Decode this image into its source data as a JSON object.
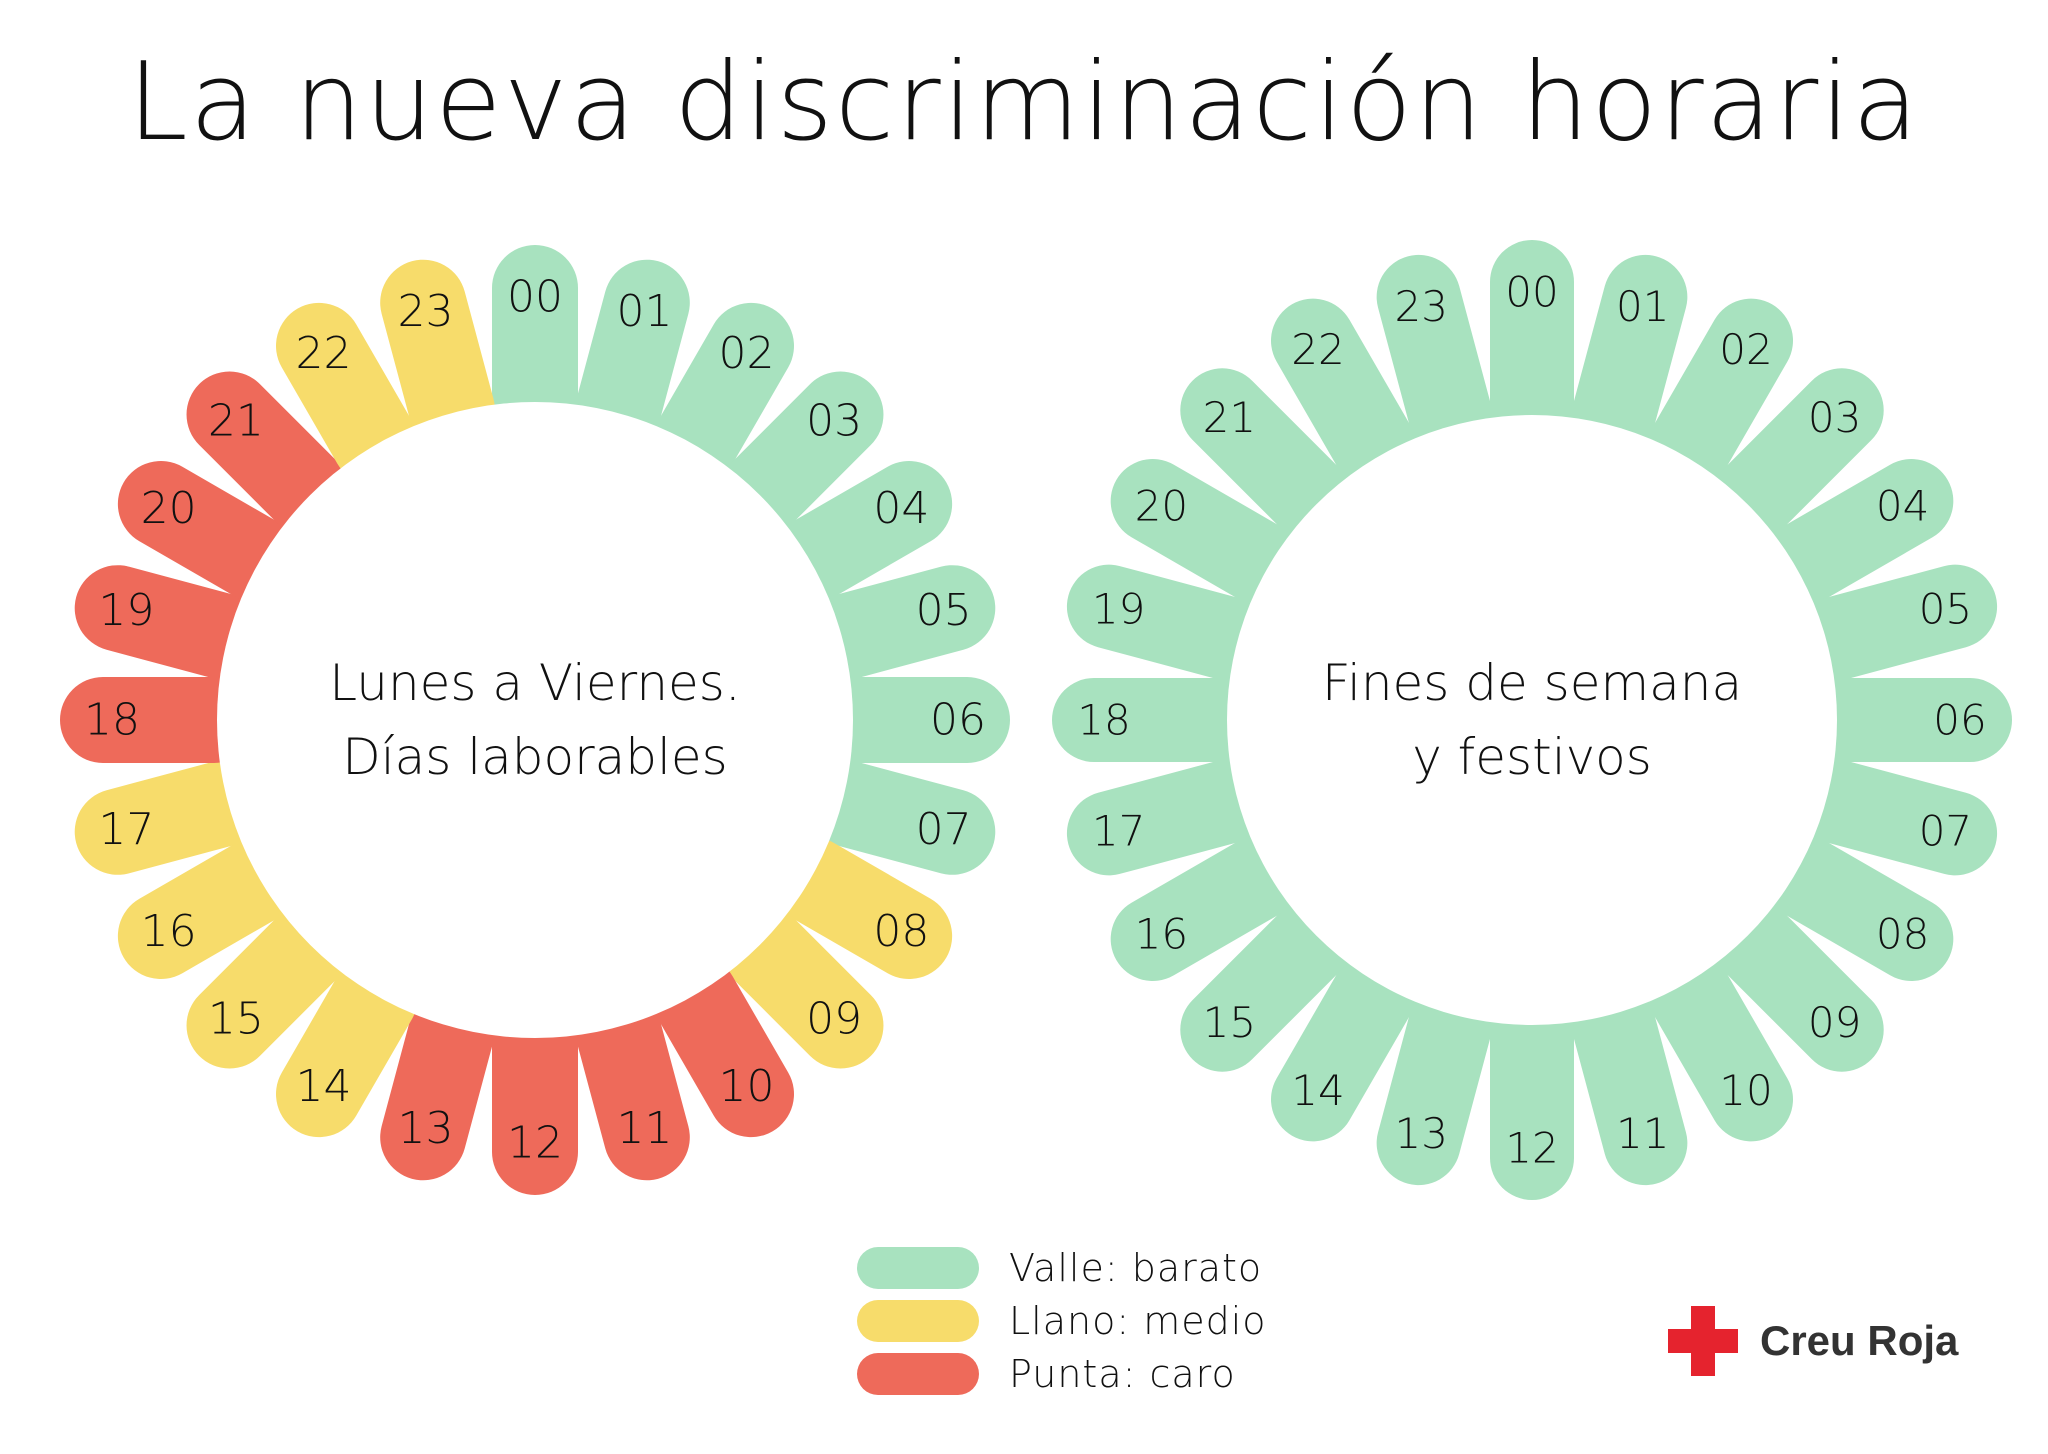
{
  "title": "La nueva discriminación horaria",
  "colors": {
    "valle": "#a8e2bf",
    "llano": "#f7dc6b",
    "punta": "#ee6a5a",
    "brand": "#e5232e"
  },
  "wheels": [
    {
      "center_lines": [
        "Lunes a Viernes.",
        "Días laborables"
      ],
      "hours": [
        {
          "label": "00",
          "tariff": "valle"
        },
        {
          "label": "01",
          "tariff": "valle"
        },
        {
          "label": "02",
          "tariff": "valle"
        },
        {
          "label": "03",
          "tariff": "valle"
        },
        {
          "label": "04",
          "tariff": "valle"
        },
        {
          "label": "05",
          "tariff": "valle"
        },
        {
          "label": "06",
          "tariff": "valle"
        },
        {
          "label": "07",
          "tariff": "valle"
        },
        {
          "label": "08",
          "tariff": "llano"
        },
        {
          "label": "09",
          "tariff": "llano"
        },
        {
          "label": "10",
          "tariff": "punta"
        },
        {
          "label": "11",
          "tariff": "punta"
        },
        {
          "label": "12",
          "tariff": "punta"
        },
        {
          "label": "13",
          "tariff": "punta"
        },
        {
          "label": "14",
          "tariff": "llano"
        },
        {
          "label": "15",
          "tariff": "llano"
        },
        {
          "label": "16",
          "tariff": "llano"
        },
        {
          "label": "17",
          "tariff": "llano"
        },
        {
          "label": "18",
          "tariff": "punta"
        },
        {
          "label": "19",
          "tariff": "punta"
        },
        {
          "label": "20",
          "tariff": "punta"
        },
        {
          "label": "21",
          "tariff": "punta"
        },
        {
          "label": "22",
          "tariff": "llano"
        },
        {
          "label": "23",
          "tariff": "llano"
        }
      ]
    },
    {
      "center_lines": [
        "Fines de semana",
        "y festivos"
      ],
      "hours": [
        {
          "label": "00",
          "tariff": "valle"
        },
        {
          "label": "01",
          "tariff": "valle"
        },
        {
          "label": "02",
          "tariff": "valle"
        },
        {
          "label": "03",
          "tariff": "valle"
        },
        {
          "label": "04",
          "tariff": "valle"
        },
        {
          "label": "05",
          "tariff": "valle"
        },
        {
          "label": "06",
          "tariff": "valle"
        },
        {
          "label": "07",
          "tariff": "valle"
        },
        {
          "label": "08",
          "tariff": "valle"
        },
        {
          "label": "09",
          "tariff": "valle"
        },
        {
          "label": "10",
          "tariff": "valle"
        },
        {
          "label": "11",
          "tariff": "valle"
        },
        {
          "label": "12",
          "tariff": "valle"
        },
        {
          "label": "13",
          "tariff": "valle"
        },
        {
          "label": "14",
          "tariff": "valle"
        },
        {
          "label": "15",
          "tariff": "valle"
        },
        {
          "label": "16",
          "tariff": "valle"
        },
        {
          "label": "17",
          "tariff": "valle"
        },
        {
          "label": "18",
          "tariff": "valle"
        },
        {
          "label": "19",
          "tariff": "valle"
        },
        {
          "label": "20",
          "tariff": "valle"
        },
        {
          "label": "21",
          "tariff": "valle"
        },
        {
          "label": "22",
          "tariff": "valle"
        },
        {
          "label": "23",
          "tariff": "valle"
        }
      ]
    }
  ],
  "legend": [
    {
      "label": "Valle: barato",
      "tariff": "valle"
    },
    {
      "label": "Llano: medio",
      "tariff": "llano"
    },
    {
      "label": "Punta: caro",
      "tariff": "punta"
    }
  ],
  "brand": {
    "name": "Creu Roja",
    "icon": "red-cross-icon"
  }
}
